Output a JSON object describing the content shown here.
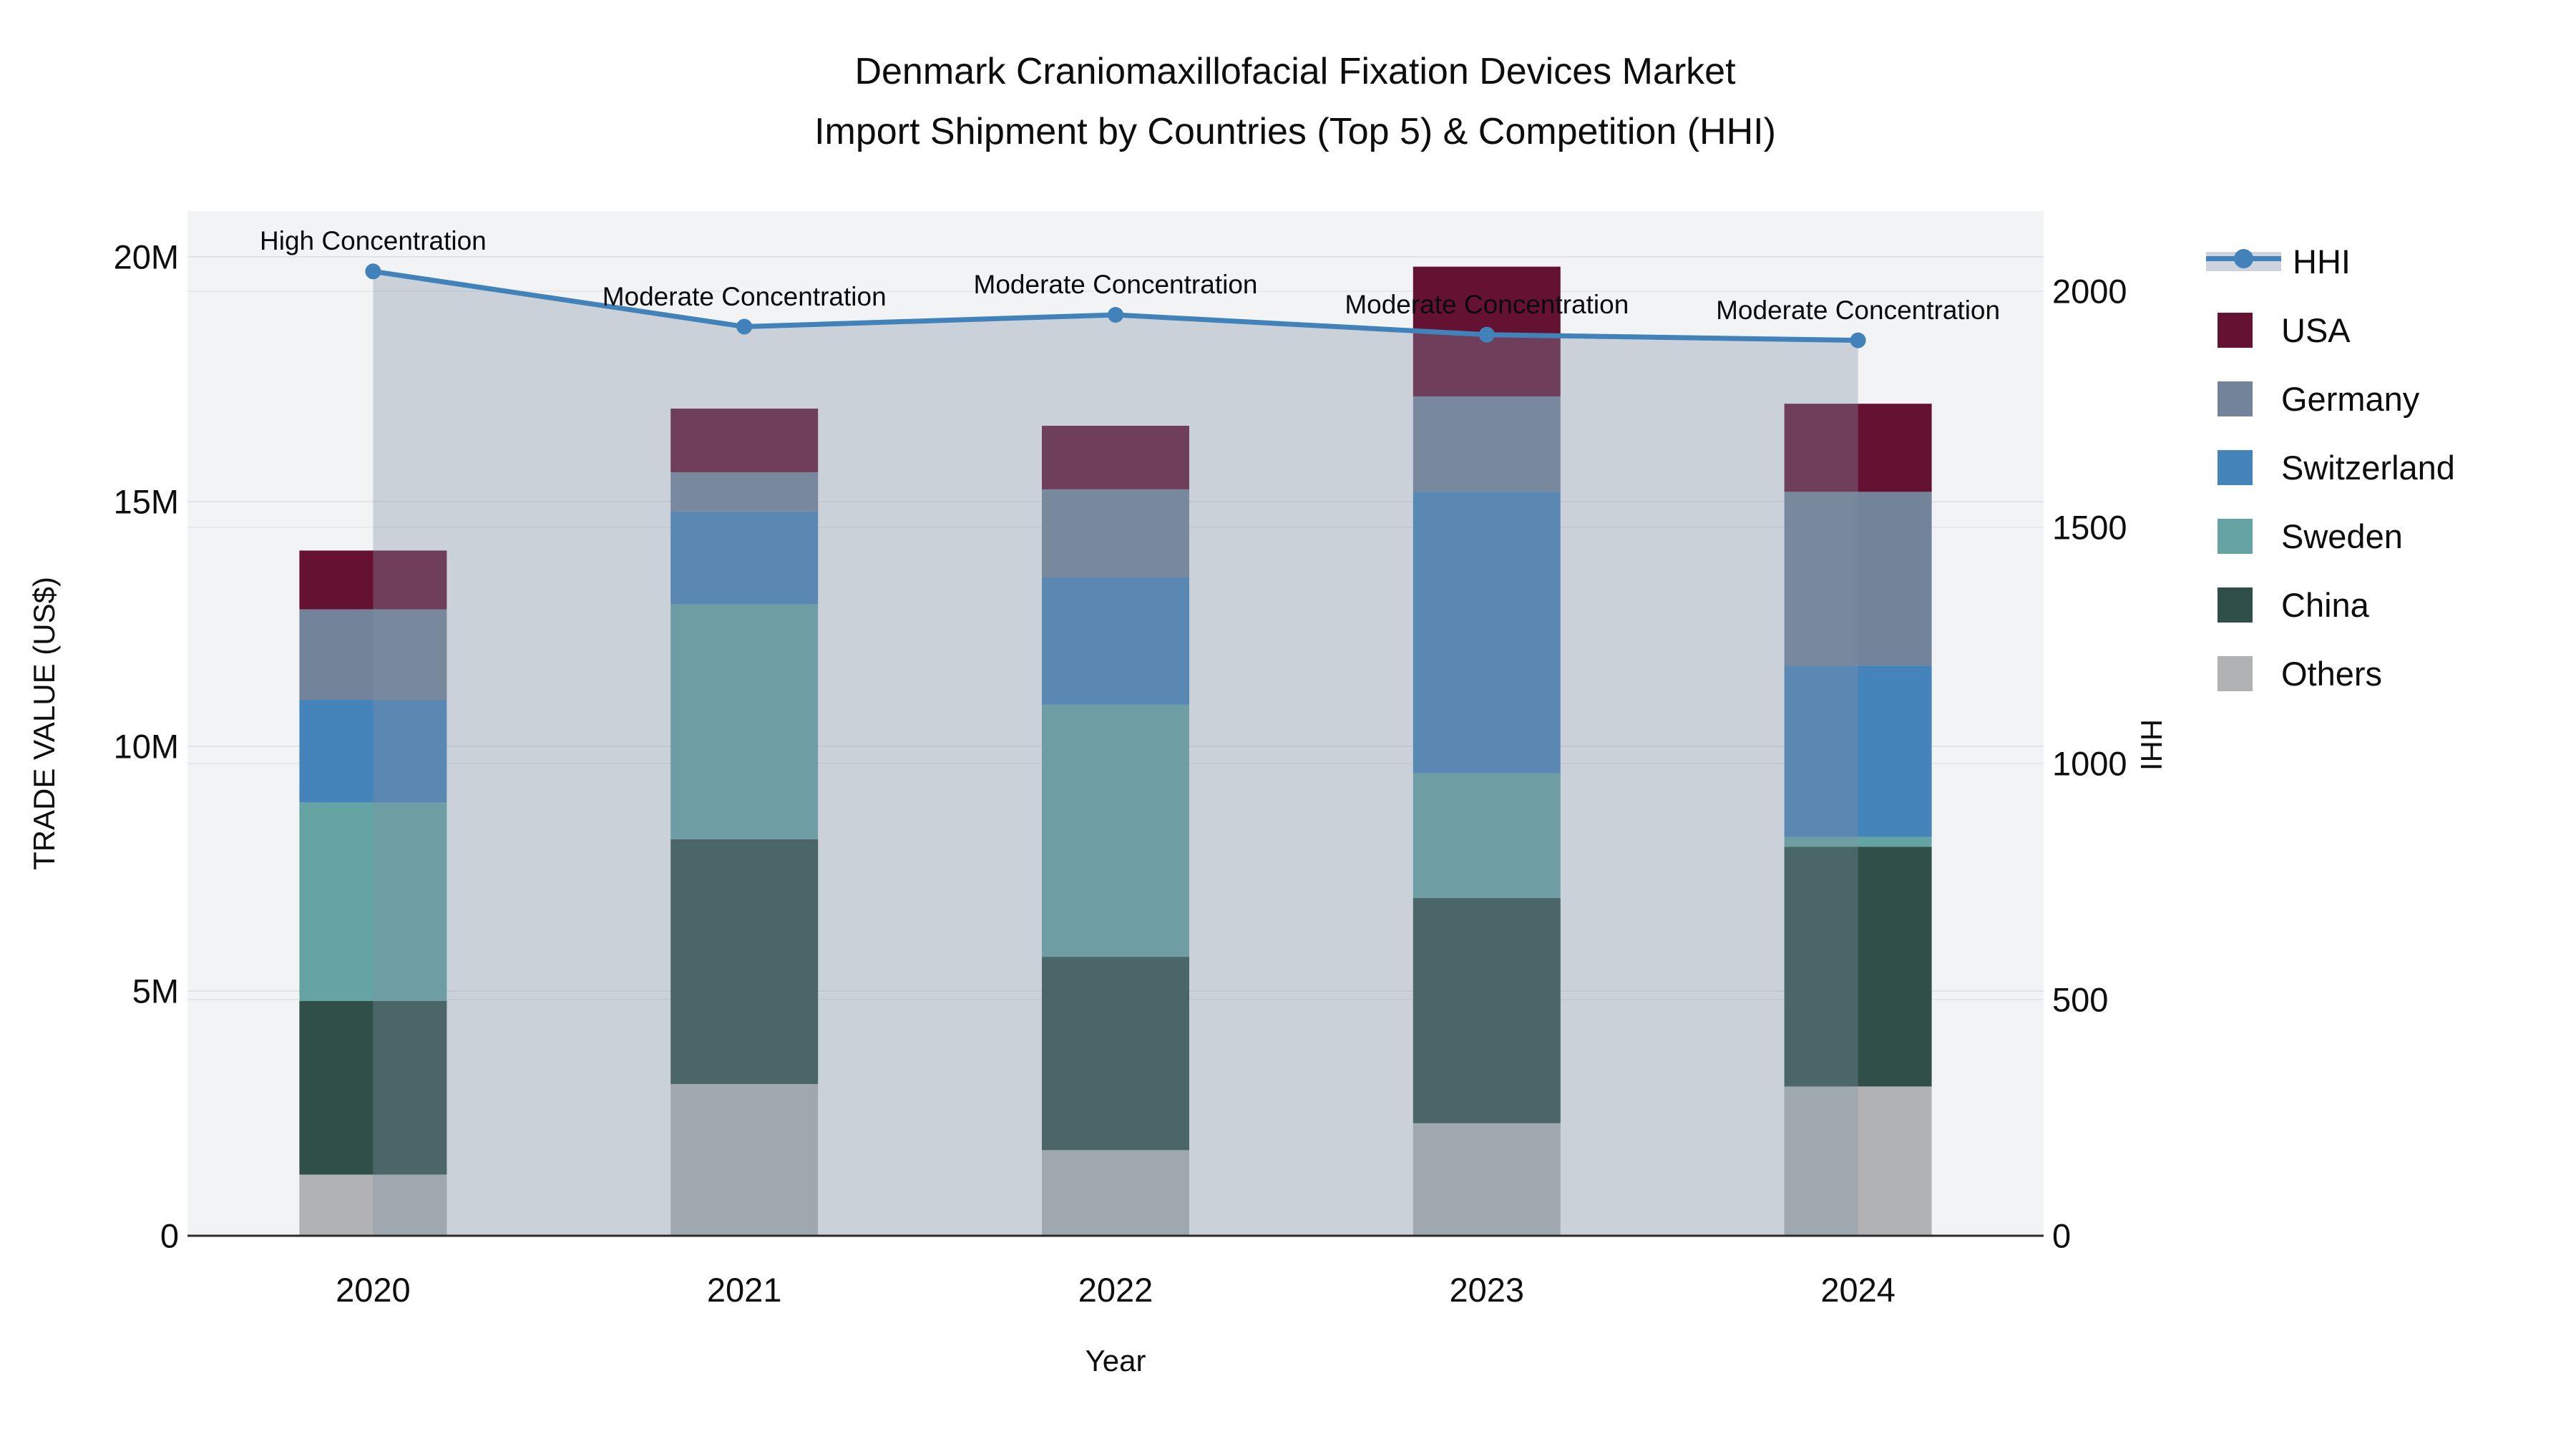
{
  "title": {
    "line1": "Denmark Craniomaxillofacial Fixation Devices Market",
    "line2": "Import Shipment by Countries (Top 5) & Competition (HHI)"
  },
  "chart_data": {
    "type": "bar",
    "subtype": "stacked-bars-with-line-overlay",
    "categories": [
      "2020",
      "2021",
      "2022",
      "2023",
      "2024"
    ],
    "series": [
      {
        "name": "USA",
        "color": "#651232",
        "values": [
          1.2,
          1.3,
          1.3,
          2.65,
          1.8
        ]
      },
      {
        "name": "Germany",
        "color": "#73849a",
        "values": [
          1.85,
          0.8,
          1.8,
          1.95,
          3.55
        ]
      },
      {
        "name": "Switzerland",
        "color": "#4583bb",
        "values": [
          2.1,
          1.9,
          2.6,
          5.75,
          3.5
        ]
      },
      {
        "name": "Sweden",
        "color": "#64a5a3",
        "values": [
          4.05,
          4.8,
          5.15,
          2.55,
          0.2
        ]
      },
      {
        "name": "China",
        "color": "#2f4f48",
        "values": [
          3.55,
          5.0,
          3.95,
          4.6,
          4.9
        ]
      },
      {
        "name": "Others",
        "color": "#b0b2b4",
        "values": [
          1.25,
          3.1,
          1.75,
          2.3,
          3.05
        ]
      }
    ],
    "stack_order_bottom_to_top": [
      "Others",
      "China",
      "Sweden",
      "Switzerland",
      "Germany",
      "USA"
    ],
    "line_series": {
      "name": "HHI",
      "color": "#4282ba",
      "area_color": "rgba(130,145,165,0.35)",
      "values": [
        2042,
        1925,
        1950,
        1908,
        1896
      ],
      "annotations": [
        "High Concentration",
        "Moderate Concentration",
        "Moderate Concentration",
        "Moderate Concentration",
        "Moderate Concentration"
      ]
    },
    "xlabel": "Year",
    "ylabel": "TRADE VALUE (US$)",
    "y2label": "HHI",
    "y_left_ticks": [
      {
        "v": 0,
        "label": "0"
      },
      {
        "v": 5,
        "label": "5M"
      },
      {
        "v": 10,
        "label": "10M"
      },
      {
        "v": 15,
        "label": "15M"
      },
      {
        "v": 20,
        "label": "20M"
      }
    ],
    "y_right_ticks": [
      {
        "v": 0,
        "label": "0"
      },
      {
        "v": 500,
        "label": "500"
      },
      {
        "v": 1000,
        "label": "1000"
      },
      {
        "v": 1500,
        "label": "1500"
      },
      {
        "v": 2000,
        "label": "2000"
      }
    ],
    "ylim_left_millions": [
      0,
      20.94
    ],
    "ylim_right": [
      0,
      2170
    ],
    "grid": true,
    "legend_position": "right",
    "legend_entries": [
      "HHI",
      "USA",
      "Germany",
      "Switzerland",
      "Sweden",
      "China",
      "Others"
    ],
    "plot_bg": "#f2f3f4",
    "grid_color_left": "#e2e3e6",
    "grid_color_right": "#e7e8eb",
    "baseline_color": "#2b2b2b"
  }
}
